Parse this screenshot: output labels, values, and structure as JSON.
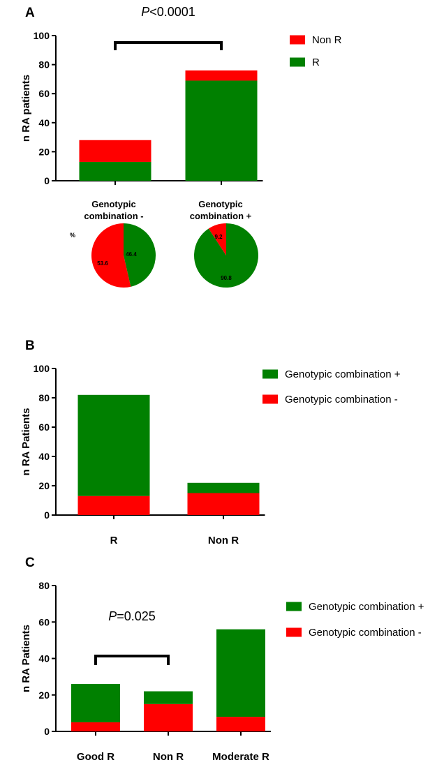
{
  "chart_data": [
    {
      "panel": "A",
      "type": "bar",
      "stacked": true,
      "ylabel": "n RA patients",
      "ylim": [
        0,
        100
      ],
      "yticks": [
        0,
        20,
        40,
        60,
        80,
        100
      ],
      "categories": [
        "Genotypic combination -",
        "Genotypic combination +"
      ],
      "series": [
        {
          "name": "R",
          "color": "#008000",
          "values": [
            13,
            69
          ]
        },
        {
          "name": "Non R",
          "color": "#ff0000",
          "values": [
            15,
            7
          ]
        }
      ],
      "legend": [
        "Non R",
        "R"
      ],
      "legend_colors": [
        "#ff0000",
        "#008000"
      ],
      "legend_position": "top-right",
      "annotation": {
        "p_label": "P",
        "p_value": "<0.0001",
        "between": [
          0,
          1
        ]
      },
      "pies": [
        {
          "title_lines": [
            "Genotypic",
            "combination -"
          ],
          "unit_label": "%",
          "slices": [
            {
              "value": 46.4,
              "label": "46.4",
              "color": "#008000"
            },
            {
              "value": 53.6,
              "label": "53.6",
              "color": "#ff0000"
            }
          ]
        },
        {
          "title_lines": [
            "Genotypic",
            "combination +"
          ],
          "slices": [
            {
              "value": 90.8,
              "label": "90.8",
              "color": "#008000"
            },
            {
              "value": 9.2,
              "label": "9.2",
              "color": "#ff0000"
            }
          ]
        }
      ]
    },
    {
      "panel": "B",
      "type": "bar",
      "stacked": true,
      "ylabel": "n RA Patients",
      "ylim": [
        0,
        100
      ],
      "yticks": [
        0,
        20,
        40,
        60,
        80,
        100
      ],
      "categories": [
        "R",
        "Non R"
      ],
      "series": [
        {
          "name": "Genotypic combination -",
          "color": "#ff0000",
          "values": [
            13,
            15
          ]
        },
        {
          "name": "Genotypic combination +",
          "color": "#008000",
          "values": [
            69,
            7
          ]
        }
      ],
      "legend": [
        "Genotypic combination +",
        "Genotypic combination -"
      ],
      "legend_colors": [
        "#008000",
        "#ff0000"
      ],
      "legend_position": "top-right"
    },
    {
      "panel": "C",
      "type": "bar",
      "stacked": true,
      "ylabel": "n RA Patients",
      "ylim": [
        0,
        80
      ],
      "yticks": [
        0,
        20,
        40,
        60,
        80
      ],
      "categories": [
        "Good R",
        "Non R",
        "Moderate R"
      ],
      "series": [
        {
          "name": "Genotypic combination -",
          "color": "#ff0000",
          "values": [
            5,
            15,
            8
          ]
        },
        {
          "name": "Genotypic combination +",
          "color": "#008000",
          "values": [
            21,
            7,
            48
          ]
        }
      ],
      "legend": [
        "Genotypic combination +",
        "Genotypic combination -"
      ],
      "legend_colors": [
        "#008000",
        "#ff0000"
      ],
      "legend_position": "top-right",
      "annotation": {
        "p_label": "P",
        "p_value": "=0.025",
        "between": [
          0,
          1
        ]
      }
    }
  ]
}
